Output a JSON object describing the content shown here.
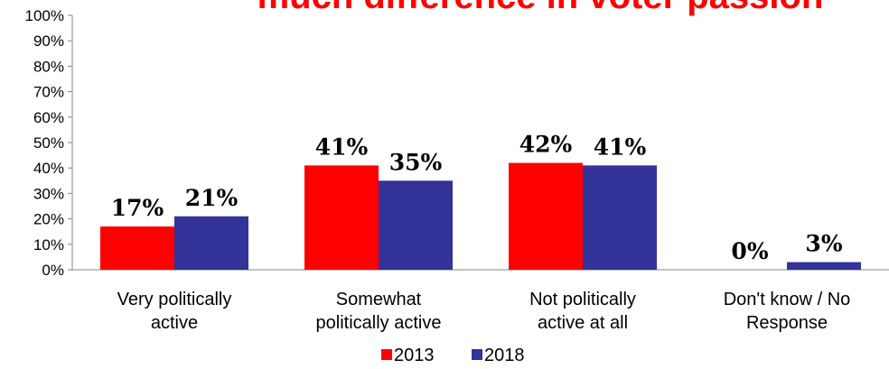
{
  "chart_data": {
    "type": "bar",
    "title": "much difference in voter passion",
    "title_color": "#ff0000",
    "categories": [
      [
        "Very politically",
        "active"
      ],
      [
        "Somewhat",
        "politically active"
      ],
      [
        "Not politically",
        "active at all"
      ],
      [
        "Don't know / No",
        "Response"
      ]
    ],
    "series": [
      {
        "name": "2013",
        "color": "#ff0000",
        "values": [
          17,
          41,
          42,
          0
        ],
        "labels": [
          "17%",
          "41%",
          "42%",
          "0%"
        ]
      },
      {
        "name": "2018",
        "color": "#333399",
        "values": [
          21,
          35,
          41,
          3
        ],
        "labels": [
          "21%",
          "35%",
          "41%",
          "3%"
        ]
      }
    ],
    "ylim": [
      0,
      100
    ],
    "yticks": [
      "0%",
      "10%",
      "20%",
      "30%",
      "40%",
      "50%",
      "60%",
      "70%",
      "80%",
      "90%",
      "100%"
    ],
    "grid": false,
    "legend_position": "bottom",
    "xlabel": "",
    "ylabel": ""
  }
}
